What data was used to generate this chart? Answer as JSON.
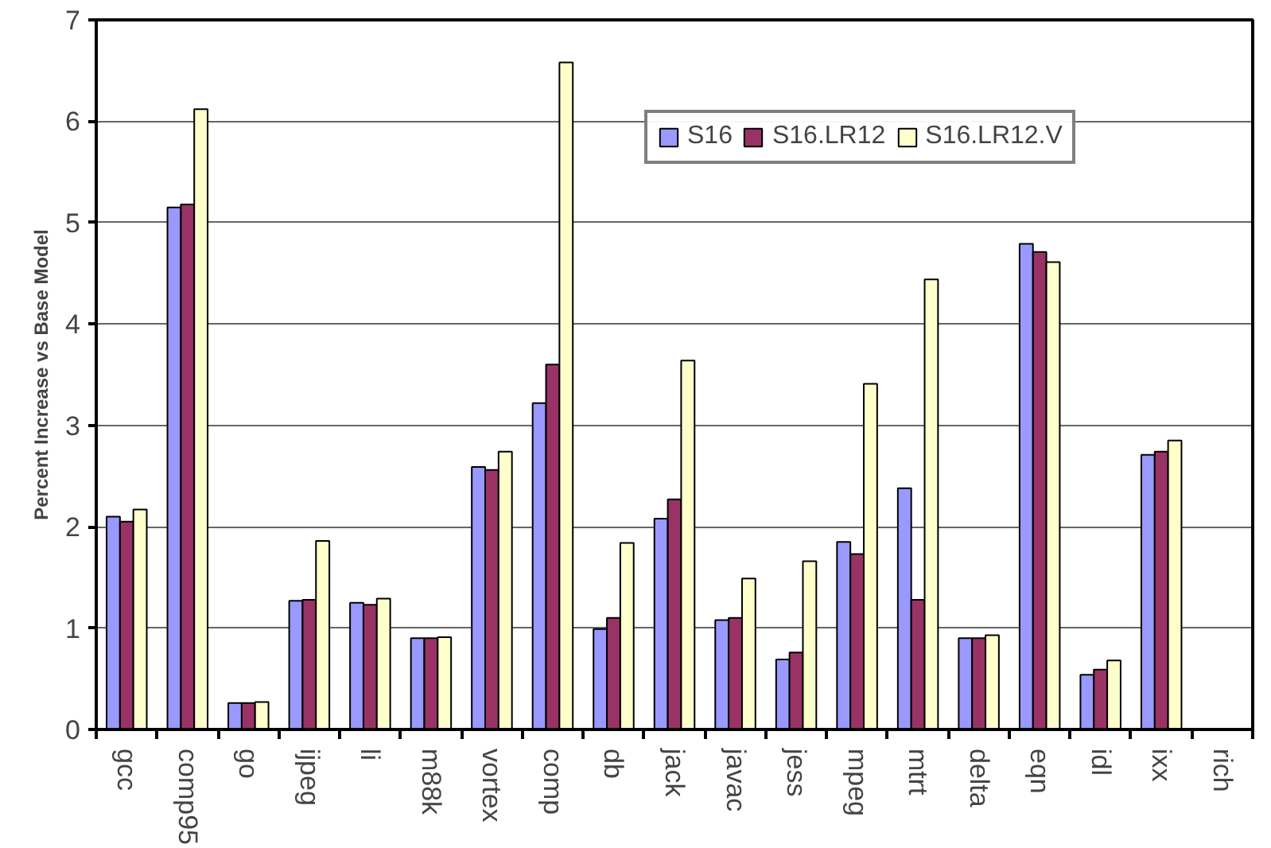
{
  "chart_data": {
    "type": "bar",
    "ylabel": "Percent Increase vs Base Model",
    "categories": [
      "gcc",
      "comp95",
      "go",
      "ijpeg",
      "li",
      "m88k",
      "vortex",
      "comp",
      "db",
      "jack",
      "javac",
      "jess",
      "mpeg",
      "mtrt",
      "delta",
      "eqn",
      "idl",
      "ixx",
      "rich"
    ],
    "series": [
      {
        "name": "S16",
        "color": "#9999ff",
        "values": [
          2.1,
          5.15,
          0.26,
          1.27,
          1.25,
          0.9,
          2.59,
          3.22,
          0.99,
          2.08,
          1.08,
          0.69,
          1.85,
          2.38,
          0.9,
          4.79,
          0.54,
          2.71,
          null
        ]
      },
      {
        "name": "S16.LR12",
        "color": "#993366",
        "values": [
          2.05,
          5.18,
          0.26,
          1.28,
          1.23,
          0.9,
          2.56,
          3.6,
          1.1,
          2.27,
          1.1,
          0.76,
          1.73,
          1.28,
          0.9,
          4.71,
          0.59,
          2.74,
          null
        ]
      },
      {
        "name": "S16.LR12.V",
        "color": "#ffffcc",
        "values": [
          2.17,
          6.12,
          0.27,
          1.86,
          1.29,
          0.91,
          2.74,
          6.58,
          1.84,
          3.64,
          1.49,
          1.66,
          3.41,
          4.44,
          0.93,
          4.61,
          0.68,
          2.85,
          null
        ]
      }
    ],
    "ylim": [
      0,
      7
    ],
    "yticks": [
      0,
      1,
      2,
      3,
      4,
      5,
      6,
      7
    ],
    "grid": "y",
    "legend": "top right"
  }
}
